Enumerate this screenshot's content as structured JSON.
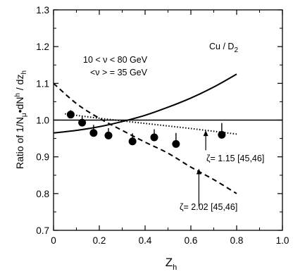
{
  "chart_data": {
    "type": "scatter",
    "xlabel_main": "Z",
    "xlabel_sub": "h",
    "ylabel_prefix": "Ratio of  1/N",
    "ylabel_mu": "μ",
    "ylabel_mid": "•dN",
    "ylabel_h": "h",
    "ylabel_slash": " / dz",
    "ylabel_hsub": "h",
    "xlim": [
      0,
      1.0
    ],
    "ylim": [
      0.7,
      1.3
    ],
    "x_ticks": [
      0,
      0.2,
      0.4,
      0.6,
      0.8,
      1.0
    ],
    "x_tick_labels": [
      "0",
      "0.2",
      "0.4",
      "0.6",
      "0.8",
      "1.0"
    ],
    "y_ticks": [
      0.7,
      0.8,
      0.9,
      1.0,
      1.1,
      1.2,
      1.3
    ],
    "y_tick_labels": [
      "0.7",
      "0.8",
      "0.9",
      "1.0",
      "1.1",
      "1.2",
      "1.3"
    ],
    "grid": false,
    "reference_line": 1.0,
    "label_target": "Cu / D",
    "label_target_sub": "2",
    "label_nu_range": "10 < ν < 80 GeV",
    "label_nu_mean": "<ν > = 35 GeV",
    "label_zeta_1": "ζ= 1.15 [45,46]",
    "label_zeta_2": "ζ= 2.02 [45,46]",
    "series": [
      {
        "style": "points-with-upper-error",
        "x": [
          0.075,
          0.125,
          0.175,
          0.24,
          0.345,
          0.44,
          0.535,
          0.735
        ],
        "y": [
          1.015,
          0.993,
          0.965,
          0.958,
          0.942,
          0.953,
          0.935,
          0.96
        ],
        "err_up": [
          0.012,
          0.018,
          0.022,
          0.02,
          0.022,
          0.022,
          0.03,
          0.032
        ]
      },
      {
        "style": "solid",
        "x": [
          0,
          0.1,
          0.2,
          0.3,
          0.4,
          0.5,
          0.6,
          0.7,
          0.8
        ],
        "y": [
          0.965,
          0.972,
          0.982,
          0.996,
          1.013,
          1.035,
          1.06,
          1.09,
          1.125
        ]
      },
      {
        "style": "dotted",
        "x": [
          0.05,
          0.2,
          0.4,
          0.6,
          0.8
        ],
        "y": [
          1.017,
          1.005,
          0.991,
          0.977,
          0.962
        ]
      },
      {
        "style": "dashed",
        "x": [
          0,
          0.1,
          0.2,
          0.3,
          0.4,
          0.5,
          0.6,
          0.7,
          0.8
        ],
        "y": [
          1.1,
          1.045,
          1.005,
          0.972,
          0.94,
          0.91,
          0.872,
          0.838,
          0.8
        ]
      }
    ]
  }
}
